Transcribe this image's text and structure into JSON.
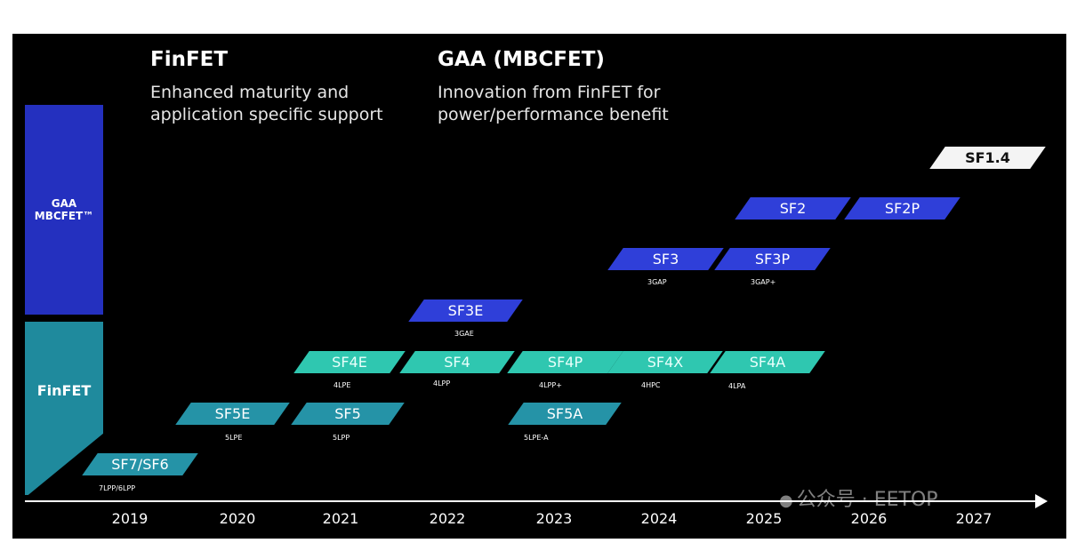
{
  "headers": {
    "finfet_title": "FinFET",
    "finfet_sub_1": "Enhanced maturity and",
    "finfet_sub_2": "application specific support",
    "gaa_title": "GAA (MBCFET)",
    "gaa_sub_1": "Innovation from FinFET for",
    "gaa_sub_2": "power/performance benefit"
  },
  "left_bars": {
    "gaa_line1": "GAA",
    "gaa_line2": "MBCFET™",
    "finfet": "FinFET"
  },
  "nodes": {
    "sf7": {
      "label": "SF7/SF6",
      "sub": "7LPP/6LPP"
    },
    "sf5e": {
      "label": "SF5E",
      "sub": "5LPE"
    },
    "sf5": {
      "label": "SF5",
      "sub": "5LPP"
    },
    "sf5a": {
      "label": "SF5A",
      "sub": "5LPE-A"
    },
    "sf4e": {
      "label": "SF4E",
      "sub": "4LPE"
    },
    "sf4": {
      "label": "SF4",
      "sub": "4LPP"
    },
    "sf4p": {
      "label": "SF4P",
      "sub": "4LPP+"
    },
    "sf4x": {
      "label": "SF4X",
      "sub": "4HPC"
    },
    "sf4a": {
      "label": "SF4A",
      "sub": "4LPA"
    },
    "sf3e": {
      "label": "SF3E",
      "sub": "3GAE"
    },
    "sf3": {
      "label": "SF3",
      "sub": "3GAP"
    },
    "sf3p": {
      "label": "SF3P",
      "sub": "3GAP+"
    },
    "sf2": {
      "label": "SF2"
    },
    "sf2p": {
      "label": "SF2P"
    },
    "sf14": {
      "label": "SF1.4"
    }
  },
  "years": [
    "2019",
    "2020",
    "2021",
    "2022",
    "2023",
    "2024",
    "2025",
    "2026",
    "2027"
  ],
  "watermark": "公众号 · EETOP",
  "colors": {
    "finfet_node": "#2fc7b0",
    "finfet_node_dark": "#2593a7",
    "gaa_node": "#2f3fd9",
    "gaa_bar": "#2430bf",
    "finfet_bar": "#1f8a9d",
    "background": "#000000"
  }
}
